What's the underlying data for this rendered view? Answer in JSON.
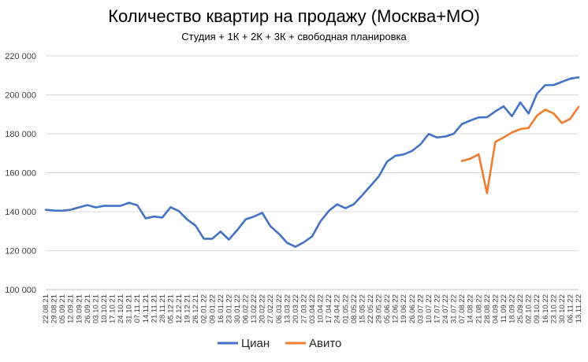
{
  "chart_data": {
    "type": "line",
    "title": "Количество квартир на продажу (Москва+МО)",
    "subtitle": "Студия + 1К + 2К + 3К + свободная планировка",
    "xlabel": "",
    "ylabel": "",
    "ylim": [
      100000,
      220000
    ],
    "yticks": [
      100000,
      120000,
      140000,
      160000,
      180000,
      200000,
      220000
    ],
    "ytick_labels": [
      "100 000",
      "120 000",
      "140 000",
      "160 000",
      "180 000",
      "200 000",
      "220 000"
    ],
    "grid": true,
    "legend_position": "bottom",
    "categories": [
      "22.08.21",
      "29.08.21",
      "05.09.21",
      "12.09.21",
      "19.09.21",
      "26.09.21",
      "03.10.21",
      "10.10.21",
      "17.10.21",
      "24.10.21",
      "31.10.21",
      "07.11.21",
      "14.11.21",
      "21.11.21",
      "28.11.21",
      "05.12.21",
      "12.12.21",
      "19.12.21",
      "26.12.21",
      "02.01.22",
      "09.01.22",
      "16.01.22",
      "23.01.22",
      "30.01.22",
      "06.02.22",
      "13.02.22",
      "20.02.22",
      "27.02.22",
      "06.03.22",
      "13.03.22",
      "20.03.22",
      "27.03.22",
      "03.04.22",
      "10.04.22",
      "17.04.22",
      "24.04.22",
      "01.05.22",
      "08.05.22",
      "15.05.22",
      "22.05.22",
      "29.05.22",
      "05.06.22",
      "12.06.22",
      "19.06.22",
      "26.06.22",
      "03.07.22",
      "10.07.22",
      "17.07.22",
      "24.07.22",
      "31.07.22",
      "07.08.22",
      "14.08.22",
      "21.08.22",
      "28.08.22",
      "04.09.22",
      "11.09.22",
      "18.09.22",
      "25.09.22",
      "02.10.22",
      "09.10.22",
      "16.10.22",
      "23.10.22",
      "30.10.22",
      "06.11.22",
      "13.11.22"
    ],
    "series": [
      {
        "name": "Циан",
        "color": "#4472C4",
        "values": [
          141000,
          140600,
          140500,
          141000,
          142200,
          143400,
          142200,
          143000,
          143000,
          143000,
          144600,
          143300,
          136600,
          137500,
          137000,
          142300,
          140300,
          136000,
          132800,
          126100,
          126100,
          129800,
          125700,
          130500,
          136000,
          137500,
          139400,
          132500,
          128700,
          124000,
          122000,
          124300,
          127300,
          135000,
          140400,
          143800,
          141800,
          143800,
          148400,
          153200,
          158100,
          165700,
          168700,
          169400,
          171200,
          174500,
          179900,
          178100,
          178600,
          180000,
          185000,
          186800,
          188400,
          188500,
          191500,
          194100,
          189000,
          196100,
          190400,
          200500,
          205000,
          205000,
          206700,
          208300,
          209000
        ]
      },
      {
        "name": "Авито",
        "color": "#ED7D31",
        "values": [
          null,
          null,
          null,
          null,
          null,
          null,
          null,
          null,
          null,
          null,
          null,
          null,
          null,
          null,
          null,
          null,
          null,
          null,
          null,
          null,
          null,
          null,
          null,
          null,
          null,
          null,
          null,
          null,
          null,
          null,
          null,
          null,
          null,
          null,
          null,
          null,
          null,
          null,
          null,
          null,
          null,
          null,
          null,
          null,
          null,
          null,
          null,
          null,
          null,
          null,
          166000,
          167200,
          169500,
          149500,
          175800,
          178100,
          180700,
          182400,
          183000,
          189300,
          192400,
          190500,
          185500,
          187700,
          193800
        ]
      }
    ]
  }
}
